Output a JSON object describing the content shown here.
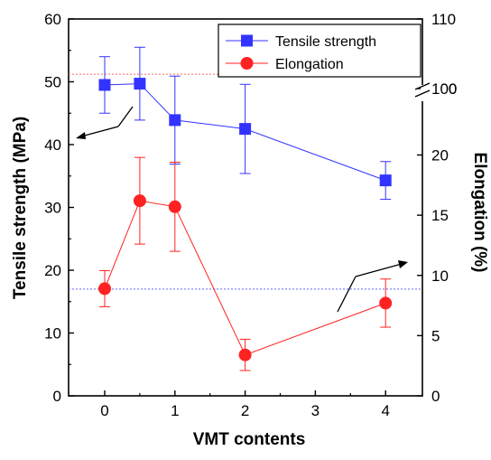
{
  "chart_data": {
    "type": "line",
    "x_positions": [
      0,
      0.5,
      1,
      2,
      4
    ],
    "x_tick_labels": [
      "0",
      "1",
      "2",
      "3",
      "4"
    ],
    "xlabel": "VMT contents",
    "ylabel_left": "Tensile strength (MPa)",
    "ylabel_right": "Elongation (%)",
    "ylim_left": [
      0,
      60
    ],
    "y_ticks_left": [
      "0",
      "10",
      "20",
      "30",
      "40",
      "50",
      "60"
    ],
    "y_ticks_right": [
      "0",
      "5",
      "10",
      "15",
      "20",
      "100",
      "110"
    ],
    "right_axis_break": "between 20 and 100",
    "series": [
      {
        "name": "Tensile strength",
        "axis": "left",
        "color": "#3333ff",
        "marker": "square",
        "x": [
          0,
          0.5,
          1,
          2,
          4
        ],
        "y": [
          49.5,
          49.7,
          43.9,
          42.5,
          34.3
        ],
        "err": [
          4.5,
          5.8,
          7.0,
          7.1,
          3.0
        ]
      },
      {
        "name": "Elongation",
        "axis": "right",
        "color": "#ff2222",
        "marker": "circle",
        "x": [
          0,
          0.5,
          1,
          2,
          4
        ],
        "y": [
          8.9,
          16.2,
          15.7,
          3.4,
          7.7
        ],
        "err": [
          1.5,
          3.6,
          3.7,
          1.3,
          2.0
        ]
      }
    ],
    "reference_lines": [
      {
        "axis": "left",
        "y": 51.2,
        "color": "#ff6666",
        "style": "dotted"
      },
      {
        "axis": "left",
        "y": 17.0,
        "color": "#6666ff",
        "style": "dotted"
      }
    ],
    "arrows": [
      {
        "direction": "to-left-axis"
      },
      {
        "direction": "to-right-axis"
      }
    ],
    "legend_position": "top-right",
    "grid": false
  }
}
